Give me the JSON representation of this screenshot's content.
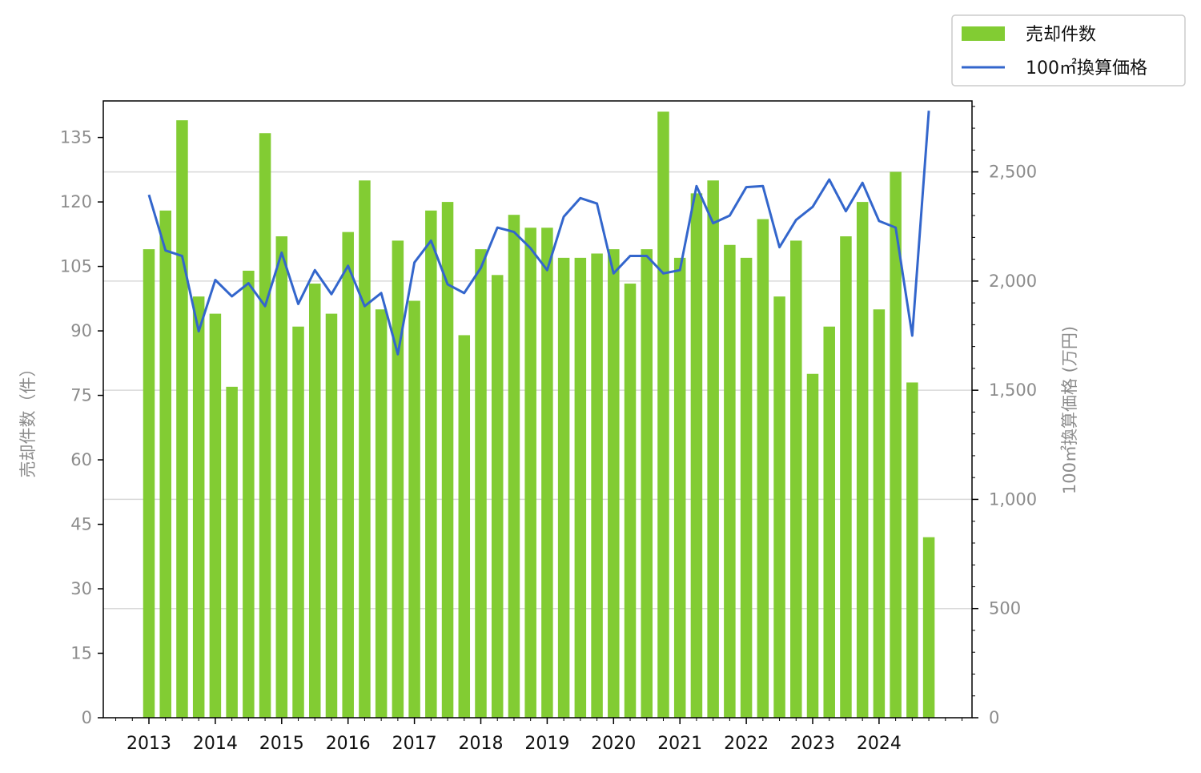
{
  "colors": {
    "bar": "#82cc33",
    "line": "#3366cc",
    "grid": "#d9d9d9",
    "axis": "#000000",
    "tick_label_muted": "#8c8c8c"
  },
  "legend": {
    "bar_label": "売却件数",
    "line_label": "100㎡換算価格"
  },
  "axes": {
    "left_title": "売却件数（件）",
    "right_title": "100㎡換算価格 (万円)"
  },
  "chart_data": {
    "type": "bar",
    "title": "",
    "x_ticks": [
      "2013",
      "2014",
      "2015",
      "2016",
      "2017",
      "2018",
      "2019",
      "2020",
      "2021",
      "2022",
      "2023",
      "2024"
    ],
    "periods": [
      "2013Q1",
      "2013Q2",
      "2013Q3",
      "2013Q4",
      "2014Q1",
      "2014Q2",
      "2014Q3",
      "2014Q4",
      "2015Q1",
      "2015Q2",
      "2015Q3",
      "2015Q4",
      "2016Q1",
      "2016Q2",
      "2016Q3",
      "2016Q4",
      "2017Q1",
      "2017Q2",
      "2017Q3",
      "2017Q4",
      "2018Q1",
      "2018Q2",
      "2018Q3",
      "2018Q4",
      "2019Q1",
      "2019Q2",
      "2019Q3",
      "2019Q4",
      "2020Q1",
      "2020Q2",
      "2020Q3",
      "2020Q4",
      "2021Q1",
      "2021Q2",
      "2021Q3",
      "2021Q4",
      "2022Q1",
      "2022Q2",
      "2022Q3",
      "2022Q4",
      "2023Q1",
      "2023Q2",
      "2023Q3",
      "2023Q4",
      "2024Q1",
      "2024Q2",
      "2024Q3",
      "2024Q4"
    ],
    "series": [
      {
        "name": "売却件数",
        "kind": "bar",
        "axis": "left",
        "values": [
          109,
          118,
          139,
          98,
          94,
          77,
          104,
          136,
          112,
          91,
          101,
          94,
          113,
          125,
          95,
          111,
          97,
          118,
          120,
          89,
          109,
          103,
          117,
          114,
          114,
          107,
          107,
          108,
          109,
          101,
          109,
          141,
          107,
          122,
          125,
          110,
          107,
          116,
          98,
          111,
          80,
          91,
          112,
          120,
          95,
          127,
          78,
          42
        ]
      },
      {
        "name": "100㎡換算価格",
        "kind": "line",
        "axis": "right",
        "values": [
          2395,
          2140,
          2115,
          1770,
          2005,
          1930,
          1990,
          1885,
          2130,
          1895,
          2050,
          1940,
          2070,
          1885,
          1945,
          1665,
          2085,
          2185,
          1985,
          1945,
          2060,
          2245,
          2225,
          2150,
          2050,
          2295,
          2380,
          2355,
          2035,
          2115,
          2115,
          2035,
          2050,
          2435,
          2265,
          2300,
          2430,
          2435,
          2155,
          2280,
          2340,
          2465,
          2320,
          2450,
          2275,
          2245,
          1750,
          2780
        ]
      }
    ],
    "left_axis": {
      "label": "売却件数（件）",
      "ticks": [
        0,
        15,
        30,
        45,
        60,
        75,
        90,
        105,
        120,
        135
      ],
      "range": [
        0,
        143.5
      ]
    },
    "right_axis": {
      "label": "100㎡換算価格 (万円)",
      "ticks": [
        0,
        500,
        1000,
        1500,
        2000,
        2500
      ],
      "tick_labels": [
        "0",
        "500",
        "1,000",
        "1,500",
        "2,000",
        "2,500"
      ],
      "range": [
        0,
        2825
      ]
    },
    "grid": "horizontal, right axis major ticks",
    "legend_position": "top-right"
  }
}
